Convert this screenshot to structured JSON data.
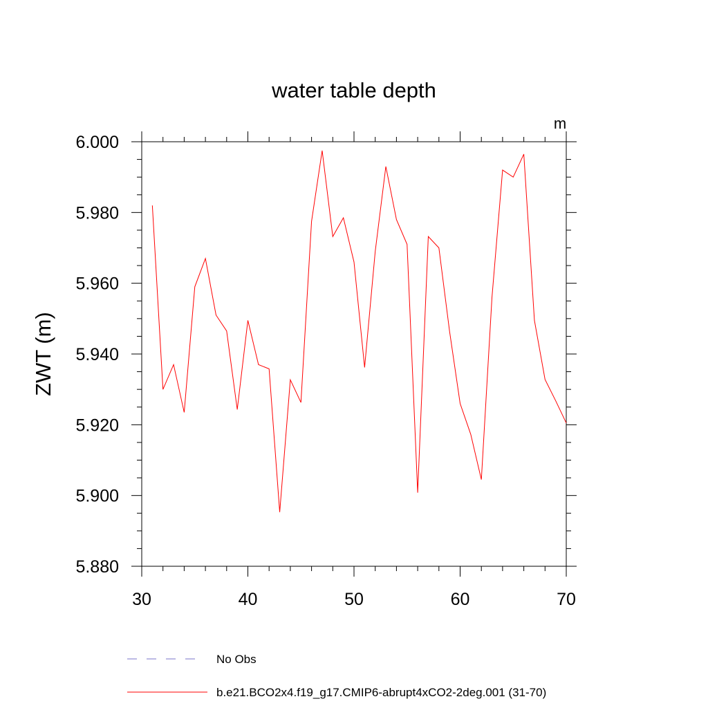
{
  "chart_data": {
    "type": "line",
    "title": "water table depth",
    "units": "m",
    "ylabel": "ZWT  (m)",
    "xlabel": "",
    "xlim": [
      30,
      70
    ],
    "ylim": [
      5.88,
      6.0
    ],
    "xticks": [
      "30",
      "40",
      "50",
      "60",
      "70"
    ],
    "yticks": [
      "5.880",
      "5.900",
      "5.920",
      "5.940",
      "5.960",
      "5.980",
      "6.000"
    ],
    "x": [
      31,
      32,
      33,
      34,
      35,
      36,
      37,
      38,
      39,
      40,
      41,
      42,
      43,
      44,
      45,
      46,
      47,
      48,
      49,
      50,
      51,
      52,
      53,
      54,
      55,
      56,
      57,
      58,
      59,
      60,
      61,
      62,
      63,
      64,
      65,
      66,
      67,
      68,
      69,
      70
    ],
    "series": [
      {
        "name": "b.e21.BCO2x4.f19_g17.CMIP6-abrupt4xCO2-2deg.001 (31-70)",
        "color": "#ff0000",
        "values": [
          5.982,
          5.93,
          5.937,
          5.9235,
          5.959,
          5.967,
          5.951,
          5.9465,
          5.9243,
          5.9495,
          5.937,
          5.9358,
          5.8953,
          5.9327,
          5.9263,
          5.9775,
          5.9975,
          5.9732,
          5.9785,
          5.966,
          5.9362,
          5.969,
          5.993,
          5.978,
          5.971,
          5.9008,
          5.9732,
          5.97,
          5.9465,
          5.926,
          5.9173,
          5.9045,
          5.956,
          5.992,
          5.99,
          5.9965,
          5.9495,
          5.9328,
          5.9268,
          5.9205
        ]
      }
    ],
    "legend": [
      {
        "label": "No Obs",
        "style": "dashed",
        "color": "#7a73c8"
      },
      {
        "label": "b.e21.BCO2x4.f19_g17.CMIP6-abrupt4xCO2-2deg.001 (31-70)",
        "style": "solid",
        "color": "#ff0000"
      }
    ],
    "legend_position": "bottom",
    "grid": false
  }
}
